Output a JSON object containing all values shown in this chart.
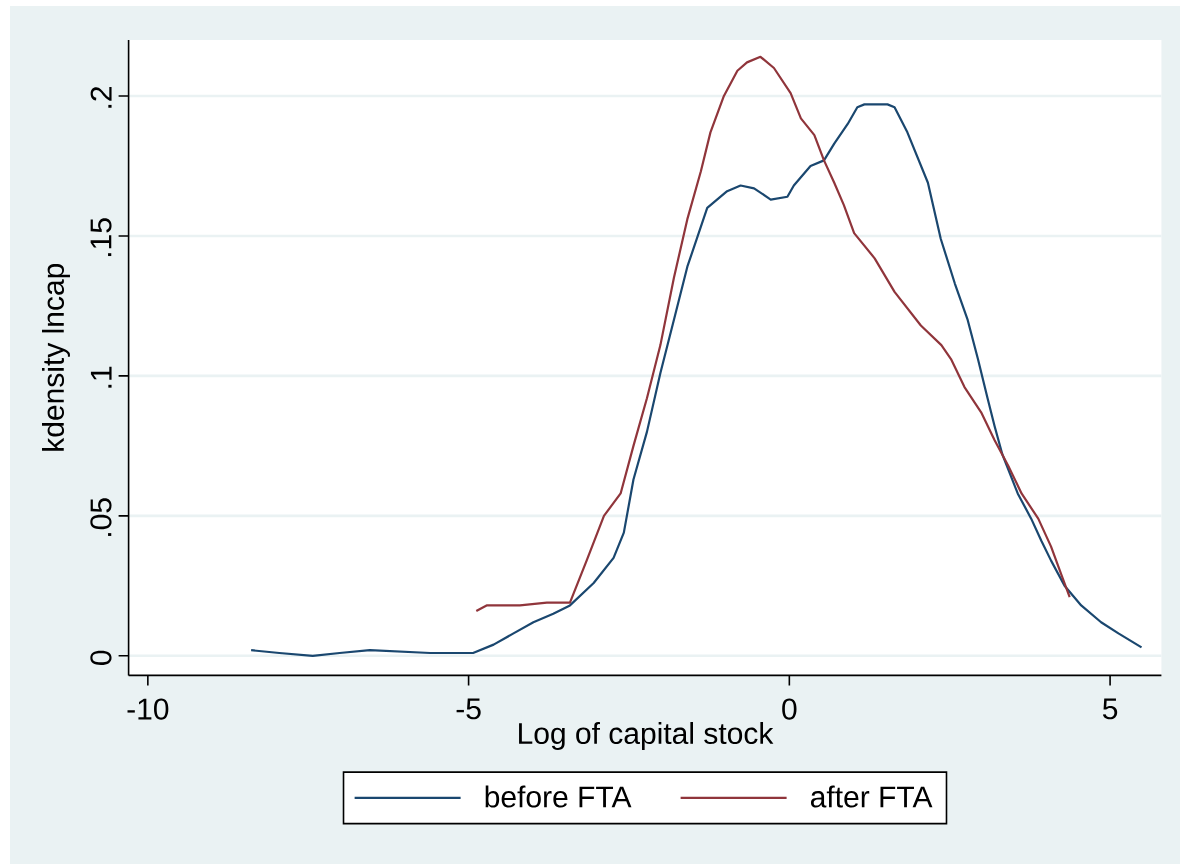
{
  "chart_data": {
    "type": "line",
    "xlabel": "Log of capital stock",
    "ylabel": "kdensity lncap",
    "xlim": [
      -10.3,
      5.8
    ],
    "ylim": [
      -0.007,
      0.22
    ],
    "xticks": [
      -10,
      -5,
      0,
      5
    ],
    "yticks": [
      0,
      {
        "value": 0.05,
        "label": ".05"
      },
      {
        "value": 0.1,
        "label": ".1"
      },
      {
        "value": 0.15,
        "label": ".15"
      },
      {
        "value": 0.2,
        "label": ".2"
      }
    ],
    "grid": "y",
    "legend": "bottom",
    "line_style": "solid",
    "series": [
      {
        "name": "before FTA",
        "color": "#1a476f",
        "x": [
          -8.39,
          -7.95,
          -7.43,
          -7.01,
          -6.54,
          -5.6,
          -4.93,
          -4.61,
          -4.3,
          -3.99,
          -3.68,
          -3.42,
          -3.05,
          -2.74,
          -2.58,
          -2.43,
          -2.22,
          -2.01,
          -1.8,
          -1.59,
          -1.28,
          -0.97,
          -0.76,
          -0.55,
          -0.29,
          -0.03,
          0.07,
          0.33,
          0.54,
          0.7,
          0.91,
          1.06,
          1.17,
          1.53,
          1.64,
          1.84,
          2.16,
          2.36,
          2.58,
          2.78,
          2.94,
          3.09,
          3.2,
          3.32,
          3.56,
          3.77,
          3.93,
          4.08,
          4.29,
          4.55,
          4.86,
          5.13,
          5.49
        ],
        "values": [
          0.002,
          0.001,
          0,
          0.001,
          0.002,
          0.001,
          0.001,
          0.004,
          0.008,
          0.012,
          0.015,
          0.018,
          0.026,
          0.035,
          0.044,
          0.063,
          0.08,
          0.101,
          0.12,
          0.139,
          0.16,
          0.166,
          0.168,
          0.167,
          0.163,
          0.164,
          0.168,
          0.175,
          0.177,
          0.183,
          0.19,
          0.196,
          0.197,
          0.197,
          0.196,
          0.187,
          0.169,
          0.149,
          0.133,
          0.12,
          0.106,
          0.092,
          0.082,
          0.072,
          0.058,
          0.049,
          0.041,
          0.034,
          0.025,
          0.018,
          0.012,
          0.008,
          0.003
        ]
      },
      {
        "name": "after FTA",
        "color": "#90353b",
        "x": [
          -4.88,
          -4.72,
          -4.2,
          -3.78,
          -3.42,
          -3.16,
          -2.89,
          -2.63,
          -2.43,
          -2.22,
          -2.01,
          -1.8,
          -1.59,
          -1.38,
          -1.23,
          -1.02,
          -0.81,
          -0.66,
          -0.45,
          -0.24,
          0.02,
          0.18,
          0.39,
          0.54,
          0.7,
          0.85,
          1.01,
          1.33,
          1.64,
          2.05,
          2.37,
          2.52,
          2.73,
          2.99,
          3.2,
          3.41,
          3.62,
          3.88,
          4.08,
          4.24,
          4.37
        ],
        "values": [
          0.016,
          0.018,
          0.018,
          0.019,
          0.019,
          0.034,
          0.05,
          0.058,
          0.075,
          0.092,
          0.111,
          0.135,
          0.156,
          0.173,
          0.187,
          0.2,
          0.209,
          0.212,
          0.214,
          0.21,
          0.201,
          0.192,
          0.186,
          0.177,
          0.169,
          0.161,
          0.151,
          0.142,
          0.13,
          0.118,
          0.111,
          0.106,
          0.096,
          0.087,
          0.077,
          0.068,
          0.058,
          0.049,
          0.039,
          0.029,
          0.021
        ]
      }
    ]
  }
}
